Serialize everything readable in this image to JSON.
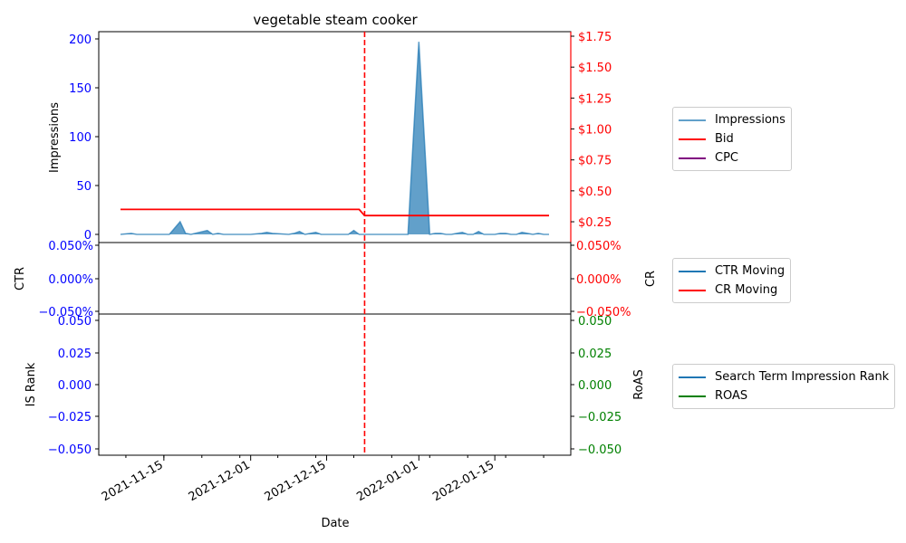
{
  "chart_data": {
    "title": "vegetable steam cooker",
    "xlabel": "Date",
    "x_ticks": [
      "2021-11-15",
      "2021-12-01",
      "2021-12-15",
      "2022-01-01",
      "2022-01-15"
    ],
    "x_range": [
      "2021-11-03",
      "2022-01-29"
    ],
    "marker_date": "2021-12-22",
    "panels": [
      {
        "type": "area+line",
        "left_axis": {
          "label": "Impressions",
          "ticks": [
            "0",
            "50",
            "100",
            "150",
            "200"
          ],
          "range": [
            -2,
            206
          ],
          "color": "#0000ff"
        },
        "right_axis": {
          "label": "",
          "ticks": [
            "$0.25",
            "$0.50",
            "$0.75",
            "$1.00",
            "$1.25",
            "$1.50",
            "$1.75"
          ],
          "range": [
            0.06,
            1.77
          ],
          "color": "#ff0000"
        },
        "series": [
          {
            "name": "Impressions",
            "color": "#1f77b4",
            "axis": "left",
            "x": [
              "2021-11-07",
              "2021-11-09",
              "2021-11-10",
              "2021-11-11",
              "2021-11-16",
              "2021-11-18",
              "2021-11-19",
              "2021-11-20",
              "2021-11-23",
              "2021-11-24",
              "2021-11-25",
              "2021-11-26",
              "2021-12-01",
              "2021-12-03",
              "2021-12-04",
              "2021-12-05",
              "2021-12-08",
              "2021-12-09",
              "2021-12-10",
              "2021-12-11",
              "2021-12-12",
              "2021-12-13",
              "2021-12-14",
              "2021-12-15",
              "2021-12-19",
              "2021-12-20",
              "2021-12-21",
              "2021-12-22",
              "2021-12-30",
              "2021-12-31",
              "2022-01-01",
              "2022-01-03",
              "2022-01-04",
              "2022-01-05",
              "2022-01-06",
              "2022-01-07",
              "2022-01-08",
              "2022-01-09",
              "2022-01-10",
              "2022-01-11",
              "2022-01-12",
              "2022-01-13",
              "2022-01-14",
              "2022-01-15",
              "2022-01-16",
              "2022-01-17",
              "2022-01-18",
              "2022-01-19",
              "2022-01-20",
              "2022-01-21",
              "2022-01-22",
              "2022-01-23",
              "2022-01-24",
              "2022-01-25"
            ],
            "y": [
              0,
              1,
              0,
              0,
              0,
              13,
              1,
              0,
              4,
              0,
              1,
              0,
              0,
              1,
              2,
              1,
              0,
              1,
              3,
              0,
              1,
              2,
              0,
              0,
              0,
              4,
              0,
              0,
              0,
              100,
              197,
              0,
              1,
              1,
              0,
              0,
              1,
              2,
              0,
              0,
              3,
              0,
              0,
              0,
              1,
              1,
              0,
              0,
              2,
              1,
              0,
              1,
              0,
              0
            ]
          },
          {
            "name": "Bid",
            "color": "#ff0000",
            "axis": "right",
            "x": [
              "2021-11-07",
              "2021-12-21",
              "2021-12-22",
              "2022-01-25"
            ],
            "y": [
              0.35,
              0.35,
              0.3,
              0.3
            ]
          },
          {
            "name": "CPC",
            "color": "#800080",
            "axis": "right",
            "x": [],
            "y": []
          }
        ]
      },
      {
        "type": "line",
        "left_axis": {
          "label": "CTR",
          "ticks": [
            "0.050%",
            "0.000%",
            "−0.050%"
          ],
          "color": "#0000ff"
        },
        "right_axis": {
          "label": "CR",
          "ticks": [
            "0.050%",
            "0.000%",
            "−0.050%"
          ],
          "color": "#ff0000"
        },
        "series": [
          {
            "name": "CTR Moving",
            "color": "#1f77b4",
            "x": [],
            "y": []
          },
          {
            "name": "CR Moving",
            "color": "#ff0000",
            "x": [],
            "y": []
          }
        ]
      },
      {
        "type": "line",
        "left_axis": {
          "label": "IS Rank",
          "ticks": [
            "0.050",
            "0.025",
            "0.000",
            "−0.025",
            "−0.050"
          ],
          "color": "#0000ff"
        },
        "right_axis": {
          "label": "RoAS",
          "ticks": [
            "0.050",
            "0.025",
            "0.000",
            "−0.025",
            "−0.050"
          ],
          "color": "#008000"
        },
        "series": [
          {
            "name": "Search Term Impression Rank",
            "color": "#1f77b4",
            "x": [],
            "y": []
          },
          {
            "name": "ROAS",
            "color": "#008000",
            "x": [],
            "y": []
          }
        ]
      }
    ]
  }
}
